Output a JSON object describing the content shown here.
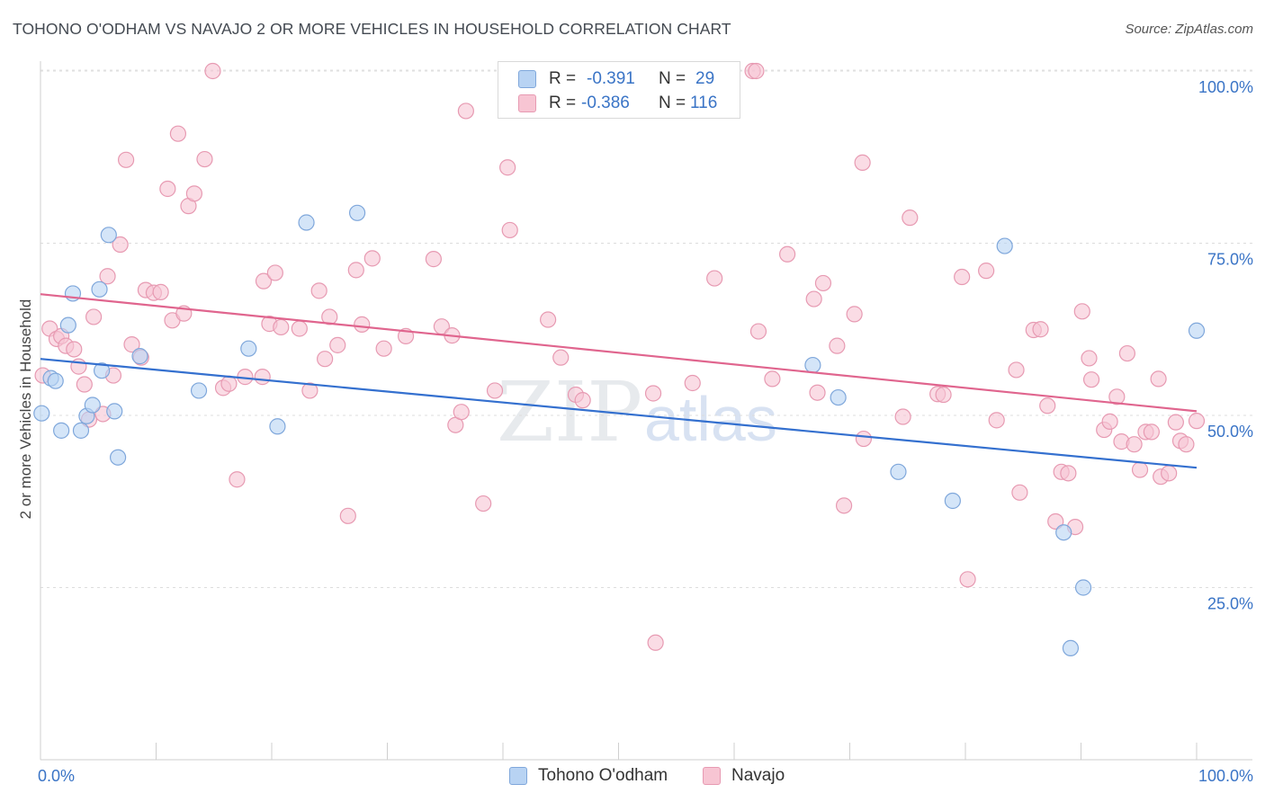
{
  "title": "TOHONO O'ODHAM VS NAVAJO 2 OR MORE VEHICLES IN HOUSEHOLD CORRELATION CHART",
  "source": "Source: ZipAtlas.com",
  "watermark": {
    "zip": "ZIP",
    "atlas": "atlas"
  },
  "legend": {
    "row1": {
      "r_label": "R =",
      "r_value": "-0.391",
      "n_label": "N =",
      "n_value": "29"
    },
    "row2": {
      "r_label": "R =",
      "r_value": "-0.386",
      "n_label": "N =",
      "n_value": "116"
    }
  },
  "bottom_legend": {
    "series1": "Tohono O'odham",
    "series2": "Navajo"
  },
  "colors": {
    "blue_fill": "#b8d3f3",
    "blue_stroke": "#7fa7db",
    "blue_line": "#3470cf",
    "pink_fill": "#f7c5d3",
    "pink_stroke": "#e79ab2",
    "pink_line": "#e0658e",
    "tick_text": "#3a74c6"
  },
  "chart_data": {
    "type": "scatter",
    "title": "TOHONO O'ODHAM VS NAVAJO 2 OR MORE VEHICLES IN HOUSEHOLD CORRELATION CHART",
    "xlabel": "",
    "ylabel": "2 or more Vehicles in Household",
    "xlim": [
      0,
      100
    ],
    "ylim": [
      0,
      100
    ],
    "x_tick_labels": [
      "0.0%",
      "100.0%"
    ],
    "y_ticks": [
      25,
      50,
      75,
      100
    ],
    "y_tick_labels": [
      "25.0%",
      "50.0%",
      "75.0%",
      "100.0%"
    ],
    "grid": true,
    "series": [
      {
        "name": "Tohono O'odham",
        "r": -0.391,
        "n": 29,
        "trend": {
          "x": [
            0,
            100
          ],
          "y": [
            58.2,
            42.4
          ]
        },
        "points": [
          [
            0.1,
            50.3
          ],
          [
            0.9,
            55.4
          ],
          [
            1.3,
            55.0
          ],
          [
            1.8,
            47.8
          ],
          [
            2.4,
            63.1
          ],
          [
            2.8,
            67.7
          ],
          [
            3.5,
            47.8
          ],
          [
            4.0,
            49.9
          ],
          [
            4.5,
            51.5
          ],
          [
            5.1,
            68.3
          ],
          [
            5.3,
            56.5
          ],
          [
            5.9,
            76.2
          ],
          [
            6.4,
            50.6
          ],
          [
            6.7,
            43.9
          ],
          [
            8.6,
            58.6
          ],
          [
            13.7,
            53.6
          ],
          [
            18.0,
            59.7
          ],
          [
            20.5,
            48.4
          ],
          [
            23.0,
            78.0
          ],
          [
            27.4,
            79.4
          ],
          [
            66.8,
            57.3
          ],
          [
            69.0,
            52.6
          ],
          [
            74.2,
            41.8
          ],
          [
            78.9,
            37.6
          ],
          [
            83.4,
            74.6
          ],
          [
            88.5,
            33.0
          ],
          [
            90.2,
            25.0
          ],
          [
            89.1,
            16.2
          ],
          [
            100.0,
            62.3
          ]
        ]
      },
      {
        "name": "Navajo",
        "r": -0.386,
        "n": 116,
        "trend": {
          "x": [
            0,
            100
          ],
          "y": [
            67.6,
            50.6
          ]
        },
        "points": [
          [
            0.2,
            55.8
          ],
          [
            0.8,
            62.6
          ],
          [
            1.4,
            61.1
          ],
          [
            1.8,
            61.5
          ],
          [
            2.2,
            60.1
          ],
          [
            2.9,
            59.6
          ],
          [
            3.3,
            57.1
          ],
          [
            3.8,
            54.5
          ],
          [
            4.2,
            49.4
          ],
          [
            4.6,
            64.3
          ],
          [
            5.4,
            50.2
          ],
          [
            5.8,
            70.2
          ],
          [
            6.3,
            55.8
          ],
          [
            6.9,
            74.8
          ],
          [
            7.4,
            87.1
          ],
          [
            7.9,
            60.3
          ],
          [
            8.7,
            58.4
          ],
          [
            9.1,
            68.2
          ],
          [
            9.8,
            67.8
          ],
          [
            10.4,
            67.9
          ],
          [
            11.0,
            82.9
          ],
          [
            11.4,
            63.8
          ],
          [
            11.9,
            90.9
          ],
          [
            12.4,
            64.8
          ],
          [
            12.8,
            80.4
          ],
          [
            13.3,
            82.2
          ],
          [
            14.2,
            87.2
          ],
          [
            14.9,
            100.0
          ],
          [
            15.8,
            54.0
          ],
          [
            16.3,
            54.6
          ],
          [
            17.0,
            40.7
          ],
          [
            17.7,
            55.6
          ],
          [
            19.2,
            55.6
          ],
          [
            19.3,
            69.5
          ],
          [
            19.8,
            63.3
          ],
          [
            20.3,
            70.7
          ],
          [
            20.8,
            62.8
          ],
          [
            22.4,
            62.6
          ],
          [
            23.3,
            53.6
          ],
          [
            24.1,
            68.1
          ],
          [
            24.6,
            58.2
          ],
          [
            25.0,
            64.3
          ],
          [
            25.7,
            60.2
          ],
          [
            26.6,
            35.4
          ],
          [
            27.3,
            71.1
          ],
          [
            27.8,
            63.2
          ],
          [
            28.7,
            72.8
          ],
          [
            29.7,
            59.7
          ],
          [
            31.6,
            61.5
          ],
          [
            34.0,
            72.7
          ],
          [
            34.7,
            62.9
          ],
          [
            35.6,
            61.6
          ],
          [
            35.9,
            48.6
          ],
          [
            36.4,
            50.5
          ],
          [
            36.8,
            94.2
          ],
          [
            38.3,
            37.2
          ],
          [
            39.3,
            53.6
          ],
          [
            40.4,
            86.0
          ],
          [
            40.6,
            76.9
          ],
          [
            43.9,
            63.9
          ],
          [
            45.0,
            58.4
          ],
          [
            46.3,
            53.0
          ],
          [
            46.9,
            52.2
          ],
          [
            53.0,
            53.2
          ],
          [
            53.2,
            17.0
          ],
          [
            56.4,
            54.7
          ],
          [
            58.3,
            69.9
          ],
          [
            61.6,
            100.0
          ],
          [
            61.9,
            100.0
          ],
          [
            62.1,
            62.2
          ],
          [
            63.3,
            55.3
          ],
          [
            64.6,
            73.4
          ],
          [
            66.9,
            66.9
          ],
          [
            67.2,
            53.3
          ],
          [
            67.7,
            69.2
          ],
          [
            68.9,
            60.1
          ],
          [
            69.5,
            36.9
          ],
          [
            70.4,
            64.7
          ],
          [
            71.1,
            86.7
          ],
          [
            71.2,
            46.6
          ],
          [
            74.6,
            49.8
          ],
          [
            75.2,
            78.7
          ],
          [
            77.6,
            53.1
          ],
          [
            78.1,
            53.0
          ],
          [
            79.7,
            70.1
          ],
          [
            80.2,
            26.2
          ],
          [
            81.8,
            71.0
          ],
          [
            82.7,
            49.3
          ],
          [
            84.4,
            56.6
          ],
          [
            84.7,
            38.8
          ],
          [
            85.9,
            62.4
          ],
          [
            86.5,
            62.5
          ],
          [
            87.1,
            51.4
          ],
          [
            87.8,
            34.6
          ],
          [
            88.3,
            41.8
          ],
          [
            88.9,
            41.6
          ],
          [
            89.5,
            33.8
          ],
          [
            90.1,
            65.1
          ],
          [
            90.7,
            58.3
          ],
          [
            90.9,
            55.2
          ],
          [
            92.0,
            47.9
          ],
          [
            92.5,
            49.1
          ],
          [
            93.1,
            52.7
          ],
          [
            93.5,
            46.2
          ],
          [
            94.0,
            59.0
          ],
          [
            94.6,
            45.8
          ],
          [
            95.1,
            42.1
          ],
          [
            95.6,
            47.6
          ],
          [
            96.1,
            47.6
          ],
          [
            96.7,
            55.3
          ],
          [
            96.9,
            41.1
          ],
          [
            97.6,
            41.6
          ],
          [
            98.2,
            49.0
          ],
          [
            98.6,
            46.3
          ],
          [
            99.1,
            45.8
          ],
          [
            100.0,
            49.2
          ]
        ]
      }
    ]
  }
}
